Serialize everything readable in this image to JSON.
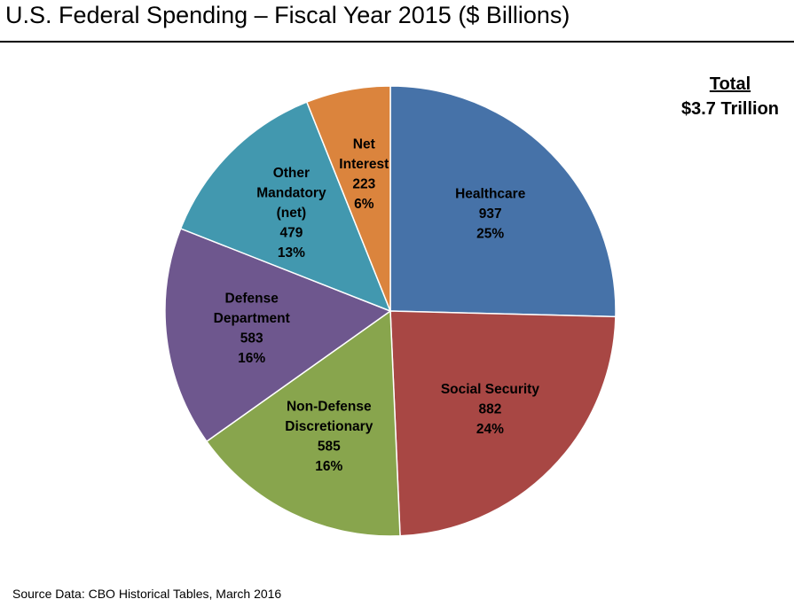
{
  "header": {
    "title": "U.S. Federal Spending – Fiscal Year 2015 ($ Billions)"
  },
  "total": {
    "label": "Total",
    "value": "$3.7 Trillion"
  },
  "footer": {
    "source": "Source Data:  CBO Historical Tables, March 2016"
  },
  "chart_data": {
    "type": "pie",
    "title": "U.S. Federal Spending – Fiscal Year 2015 ($ Billions)",
    "unit": "$ Billions",
    "start": "12 o'clock, clockwise",
    "slices": [
      {
        "key": "healthcare",
        "label_lines": [
          "Healthcare"
        ],
        "value": 937,
        "percent": "25%",
        "color": "#4672A8"
      },
      {
        "key": "social-security",
        "label_lines": [
          "Social Security"
        ],
        "value": 882,
        "percent": "24%",
        "color": "#A84744"
      },
      {
        "key": "non-defense-discretionary",
        "label_lines": [
          "Non-Defense",
          "Discretionary"
        ],
        "value": 585,
        "percent": "16%",
        "color": "#88A54D"
      },
      {
        "key": "defense-department",
        "label_lines": [
          "Defense",
          "Department"
        ],
        "value": 583,
        "percent": "16%",
        "color": "#6E578E"
      },
      {
        "key": "other-mandatory",
        "label_lines": [
          "Other",
          "Mandatory",
          "(net)"
        ],
        "value": 479,
        "percent": "13%",
        "color": "#4298AF"
      },
      {
        "key": "net-interest",
        "label_lines": [
          "Net",
          "Interest"
        ],
        "value": 223,
        "percent": "6%",
        "color": "#DB843D"
      }
    ]
  }
}
